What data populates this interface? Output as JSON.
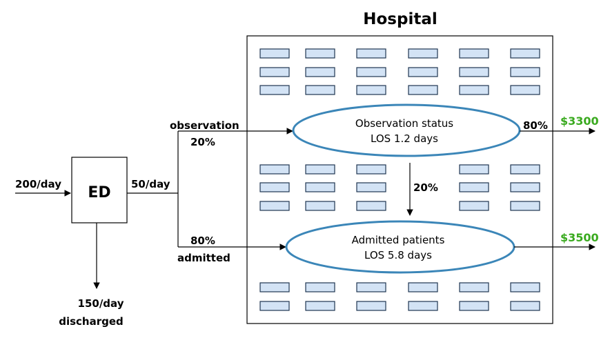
{
  "title": "Hospital",
  "ed": {
    "label": "ED"
  },
  "inflow": "200/day",
  "ed_out": "50/day",
  "discharged": {
    "rate": "150/day",
    "label": "discharged"
  },
  "observation_branch": {
    "label": "observation",
    "pct": "20%"
  },
  "admitted_branch": {
    "pct": "80%",
    "label": "admitted"
  },
  "observation_oval": {
    "line1": "Observation status",
    "line2": "LOS 1.2 days"
  },
  "admitted_oval": {
    "line1": "Admitted patients",
    "line2": "LOS 5.8 days"
  },
  "obs_to_admit_pct": "20%",
  "obs_exit": {
    "pct": "80%",
    "cost": "$3300"
  },
  "admit_exit": {
    "cost": "$3500"
  },
  "colors": {
    "oval_stroke": "#3b86b8",
    "bed_fill": "#d3e3f5",
    "cost_green": "#3aaa1f"
  }
}
